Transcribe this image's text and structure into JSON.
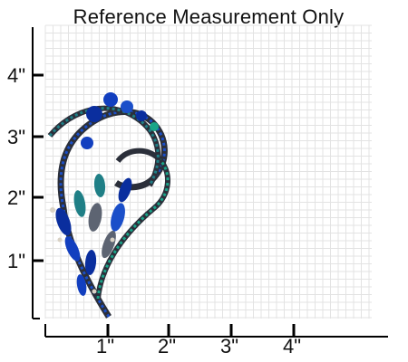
{
  "title": "Reference Measurement Only",
  "x_ticks": [
    "1\"",
    "2\"",
    "3\"",
    "4\""
  ],
  "y_ticks": [
    "4\"",
    "3\"",
    "2\"",
    "1\""
  ],
  "colors": {
    "axis": "#000000",
    "grid": "#e3e3e3",
    "metal": "#2b2f3a",
    "sapphire": "#0a2e9e",
    "teal": "#1f7f86",
    "green": "#1aa589",
    "grey_stone": "#5d6472"
  },
  "subject": "jeweled-brooch"
}
